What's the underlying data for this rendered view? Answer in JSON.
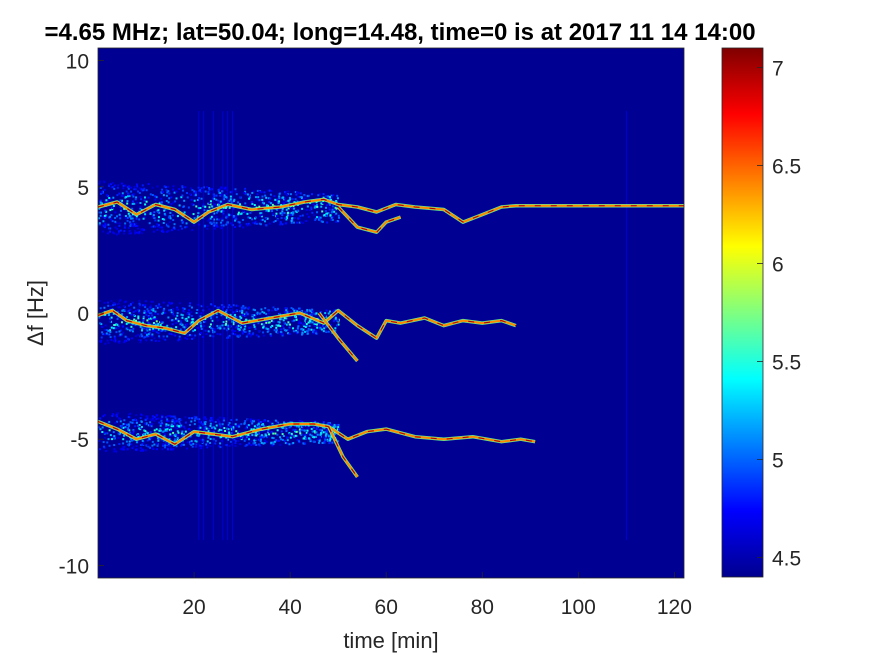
{
  "chart_data": {
    "type": "heatmap",
    "title": "=4.65 MHz;  lat=50.04; long=14.48, time=0 is at 2017 11 14 14:00",
    "xlabel": "time [min]",
    "ylabel": "Δf [Hz]",
    "xlim": [
      0,
      122
    ],
    "ylim": [
      -10.5,
      10.5
    ],
    "xticks": [
      20,
      40,
      60,
      80,
      100,
      120
    ],
    "yticks": [
      -10,
      -5,
      0,
      5,
      10
    ],
    "colorbar": {
      "colormap": "jet",
      "clim": [
        4.4,
        7.1
      ],
      "ticks": [
        4.5,
        5,
        5.5,
        6,
        6.5,
        7
      ]
    },
    "background_value": 4.45,
    "traces": [
      {
        "band": "upper",
        "points": [
          [
            0,
            4.2
          ],
          [
            4,
            4.4
          ],
          [
            8,
            3.9
          ],
          [
            12,
            4.3
          ],
          [
            16,
            4.1
          ],
          [
            20,
            3.6
          ],
          [
            23,
            4.0
          ],
          [
            27,
            4.3
          ],
          [
            32,
            4.1
          ],
          [
            38,
            4.2
          ],
          [
            43,
            4.4
          ],
          [
            47,
            4.5
          ],
          [
            50,
            4.3
          ],
          [
            54,
            4.2
          ],
          [
            58,
            4.0
          ],
          [
            62,
            4.3
          ],
          [
            66,
            4.2
          ],
          [
            72,
            4.1
          ],
          [
            76,
            3.6
          ],
          [
            80,
            3.9
          ],
          [
            84,
            4.2
          ],
          [
            87,
            4.25
          ],
          [
            122,
            4.25
          ]
        ]
      },
      {
        "band": "upper-branch",
        "points": [
          [
            50,
            4.2
          ],
          [
            54,
            3.4
          ],
          [
            58,
            3.2
          ],
          [
            60,
            3.6
          ],
          [
            63,
            3.8
          ]
        ]
      },
      {
        "band": "middle",
        "points": [
          [
            0,
            -0.1
          ],
          [
            3,
            0.1
          ],
          [
            6,
            -0.3
          ],
          [
            10,
            -0.5
          ],
          [
            14,
            -0.6
          ],
          [
            18,
            -0.8
          ],
          [
            21,
            -0.3
          ],
          [
            25,
            0.1
          ],
          [
            30,
            -0.4
          ],
          [
            36,
            -0.2
          ],
          [
            42,
            0.0
          ],
          [
            47,
            -0.4
          ],
          [
            50,
            0.1
          ],
          [
            54,
            -0.5
          ],
          [
            58,
            -1.0
          ],
          [
            60,
            -0.3
          ],
          [
            63,
            -0.4
          ],
          [
            68,
            -0.2
          ],
          [
            72,
            -0.5
          ],
          [
            76,
            -0.3
          ],
          [
            80,
            -0.4
          ],
          [
            84,
            -0.3
          ],
          [
            87,
            -0.5
          ]
        ]
      },
      {
        "band": "middle-branch",
        "points": [
          [
            46,
            0.0
          ],
          [
            50,
            -1.0
          ],
          [
            54,
            -1.9
          ]
        ]
      },
      {
        "band": "lower",
        "points": [
          [
            0,
            -4.3
          ],
          [
            4,
            -4.6
          ],
          [
            8,
            -5.0
          ],
          [
            12,
            -4.8
          ],
          [
            16,
            -5.2
          ],
          [
            20,
            -4.7
          ],
          [
            24,
            -4.8
          ],
          [
            28,
            -4.9
          ],
          [
            34,
            -4.6
          ],
          [
            40,
            -4.4
          ],
          [
            45,
            -4.4
          ],
          [
            48,
            -4.5
          ],
          [
            52,
            -5.0
          ],
          [
            56,
            -4.7
          ],
          [
            60,
            -4.6
          ],
          [
            66,
            -4.9
          ],
          [
            72,
            -5.0
          ],
          [
            78,
            -4.9
          ],
          [
            84,
            -5.1
          ],
          [
            88,
            -5.0
          ],
          [
            91,
            -5.1
          ]
        ]
      },
      {
        "band": "lower-branch",
        "points": [
          [
            48,
            -4.5
          ],
          [
            51,
            -5.7
          ],
          [
            54,
            -6.5
          ]
        ]
      }
    ],
    "spread_regions": [
      {
        "band": "upper",
        "x": [
          0,
          50
        ],
        "center": 4.2,
        "spread": 1.1
      },
      {
        "band": "middle",
        "x": [
          0,
          50
        ],
        "center": -0.3,
        "spread": 0.9
      },
      {
        "band": "lower",
        "x": [
          0,
          50
        ],
        "center": -4.7,
        "spread": 0.8
      }
    ]
  }
}
